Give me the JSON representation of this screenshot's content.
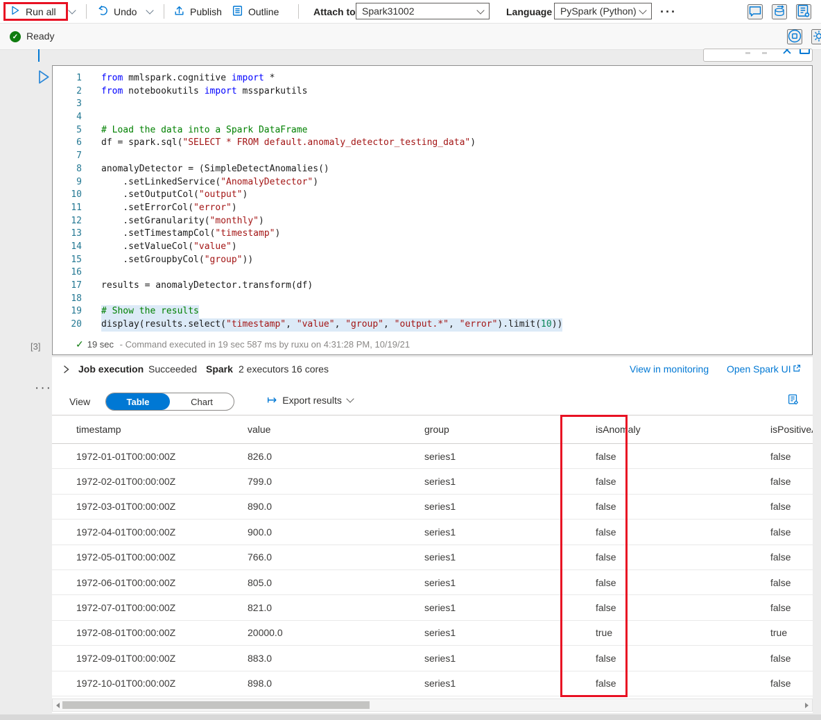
{
  "toolbar": {
    "run_all_label": "Run all",
    "undo_label": "Undo",
    "publish_label": "Publish",
    "outline_label": "Outline",
    "attach_to_label": "Attach to",
    "attach_to_value": "Spark31002",
    "language_label": "Language",
    "language_value": "PySpark (Python)",
    "more_label": "···"
  },
  "status_bar": {
    "ready_label": "Ready"
  },
  "cell": {
    "execution_count": "[3]",
    "menu_dots": "···",
    "duration": "19 sec",
    "status_detail": " - Command executed in 19 sec 587 ms by ruxu on 4:31:28 PM, 10/19/21"
  },
  "code": {
    "lines": [
      {
        "n": "1",
        "segs": [
          [
            "kw",
            "from"
          ],
          [
            "pl",
            " mmlspark.cognitive "
          ],
          [
            "kw",
            "import"
          ],
          [
            "pl",
            " *"
          ]
        ]
      },
      {
        "n": "2",
        "segs": [
          [
            "kw",
            "from"
          ],
          [
            "pl",
            " notebookutils "
          ],
          [
            "kw",
            "import"
          ],
          [
            "pl",
            " mssparkutils"
          ]
        ]
      },
      {
        "n": "3",
        "segs": []
      },
      {
        "n": "4",
        "segs": []
      },
      {
        "n": "5",
        "segs": [
          [
            "com",
            "# Load the data into a Spark DataFrame"
          ]
        ]
      },
      {
        "n": "6",
        "segs": [
          [
            "pl",
            "df = spark.sql("
          ],
          [
            "str",
            "\"SELECT * FROM default.anomaly_detector_testing_data\""
          ],
          [
            "pl",
            ")"
          ]
        ]
      },
      {
        "n": "7",
        "segs": []
      },
      {
        "n": "8",
        "segs": [
          [
            "pl",
            "anomalyDetector = (SimpleDetectAnomalies()"
          ]
        ]
      },
      {
        "n": "9",
        "segs": [
          [
            "pl",
            "    .setLinkedService("
          ],
          [
            "str",
            "\"AnomalyDetector\""
          ],
          [
            "pl",
            ")"
          ]
        ]
      },
      {
        "n": "10",
        "segs": [
          [
            "pl",
            "    .setOutputCol("
          ],
          [
            "str",
            "\"output\""
          ],
          [
            "pl",
            ")"
          ]
        ]
      },
      {
        "n": "11",
        "segs": [
          [
            "pl",
            "    .setErrorCol("
          ],
          [
            "str",
            "\"error\""
          ],
          [
            "pl",
            ")"
          ]
        ]
      },
      {
        "n": "12",
        "segs": [
          [
            "pl",
            "    .setGranularity("
          ],
          [
            "str",
            "\"monthly\""
          ],
          [
            "pl",
            ")"
          ]
        ]
      },
      {
        "n": "13",
        "segs": [
          [
            "pl",
            "    .setTimestampCol("
          ],
          [
            "str",
            "\"timestamp\""
          ],
          [
            "pl",
            ")"
          ]
        ]
      },
      {
        "n": "14",
        "segs": [
          [
            "pl",
            "    .setValueCol("
          ],
          [
            "str",
            "\"value\""
          ],
          [
            "pl",
            ")"
          ]
        ]
      },
      {
        "n": "15",
        "segs": [
          [
            "pl",
            "    .setGroupbyCol("
          ],
          [
            "str",
            "\"group\""
          ],
          [
            "pl",
            "))"
          ]
        ]
      },
      {
        "n": "16",
        "segs": []
      },
      {
        "n": "17",
        "segs": [
          [
            "pl",
            "results = anomalyDetector.transform(df)"
          ]
        ]
      },
      {
        "n": "18",
        "segs": []
      },
      {
        "n": "19",
        "sel": true,
        "segs": [
          [
            "com",
            "# Show the results"
          ]
        ]
      },
      {
        "n": "20",
        "sel": true,
        "segs": [
          [
            "pl",
            "display(results.select("
          ],
          [
            "str",
            "\"timestamp\""
          ],
          [
            "pl",
            ", "
          ],
          [
            "str",
            "\"value\""
          ],
          [
            "pl",
            ", "
          ],
          [
            "str",
            "\"group\""
          ],
          [
            "pl",
            ", "
          ],
          [
            "str",
            "\"output.*\""
          ],
          [
            "pl",
            ", "
          ],
          [
            "str",
            "\"error\""
          ],
          [
            "pl",
            ").limit("
          ],
          [
            "num",
            "10"
          ],
          [
            "pl",
            "))"
          ]
        ]
      }
    ]
  },
  "job": {
    "title": "Job execution",
    "status": "Succeeded",
    "spark_label": "Spark",
    "spark_detail": "2 executors 16 cores",
    "view_in_monitoring": "View in monitoring",
    "open_spark_ui": "Open Spark UI"
  },
  "results": {
    "view_label": "View",
    "table_tab": "Table",
    "chart_tab": "Chart",
    "export_label": "Export results",
    "columns": [
      "timestamp",
      "value",
      "group",
      "isAnomaly",
      "isPositiveAnomaly"
    ],
    "rows": [
      [
        "1972-01-01T00:00:00Z",
        "826.0",
        "series1",
        "false",
        "false"
      ],
      [
        "1972-02-01T00:00:00Z",
        "799.0",
        "series1",
        "false",
        "false"
      ],
      [
        "1972-03-01T00:00:00Z",
        "890.0",
        "series1",
        "false",
        "false"
      ],
      [
        "1972-04-01T00:00:00Z",
        "900.0",
        "series1",
        "false",
        "false"
      ],
      [
        "1972-05-01T00:00:00Z",
        "766.0",
        "series1",
        "false",
        "false"
      ],
      [
        "1972-06-01T00:00:00Z",
        "805.0",
        "series1",
        "false",
        "false"
      ],
      [
        "1972-07-01T00:00:00Z",
        "821.0",
        "series1",
        "false",
        "false"
      ],
      [
        "1972-08-01T00:00:00Z",
        "20000.0",
        "series1",
        "true",
        "true"
      ],
      [
        "1972-09-01T00:00:00Z",
        "883.0",
        "series1",
        "false",
        "false"
      ],
      [
        "1972-10-01T00:00:00Z",
        "898.0",
        "series1",
        "false",
        "false"
      ]
    ]
  },
  "colors": {
    "accent": "#0078d4",
    "red_highlight": "#e81123",
    "success_green": "#107c10"
  }
}
